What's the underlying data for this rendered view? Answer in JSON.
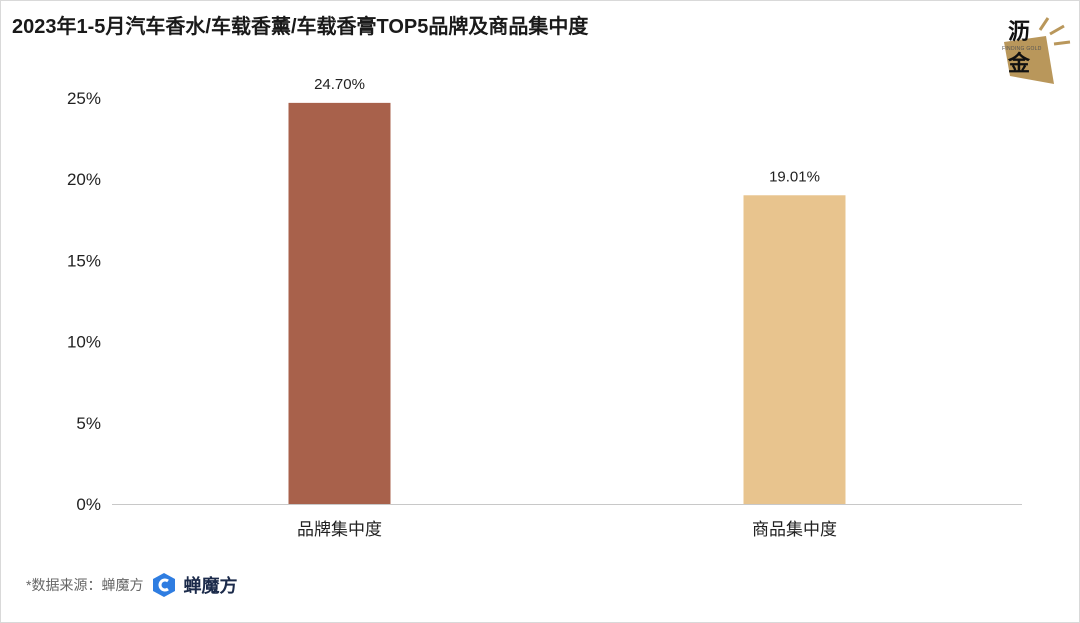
{
  "title": "2023年1-5月汽车香水/车载香薰/车载香膏TOP5品牌及商品集中度",
  "logo": {
    "text_top": "沥",
    "text_bottom": "金",
    "subtext": "FINDING GOLD"
  },
  "footer": {
    "source_label": "*数据来源：蝉魔方",
    "brand_name": "蝉魔方"
  },
  "chart_data": {
    "type": "bar",
    "categories": [
      "品牌集中度",
      "商品集中度"
    ],
    "values": [
      24.7,
      19.01
    ],
    "data_labels": [
      "24.70%",
      "19.01%"
    ],
    "colors": [
      "#a8614b",
      "#e8c48e"
    ],
    "y_ticks": [
      "0%",
      "5%",
      "10%",
      "15%",
      "20%",
      "25%"
    ],
    "ylim": [
      0,
      25
    ],
    "grid": false,
    "legend": "none"
  }
}
